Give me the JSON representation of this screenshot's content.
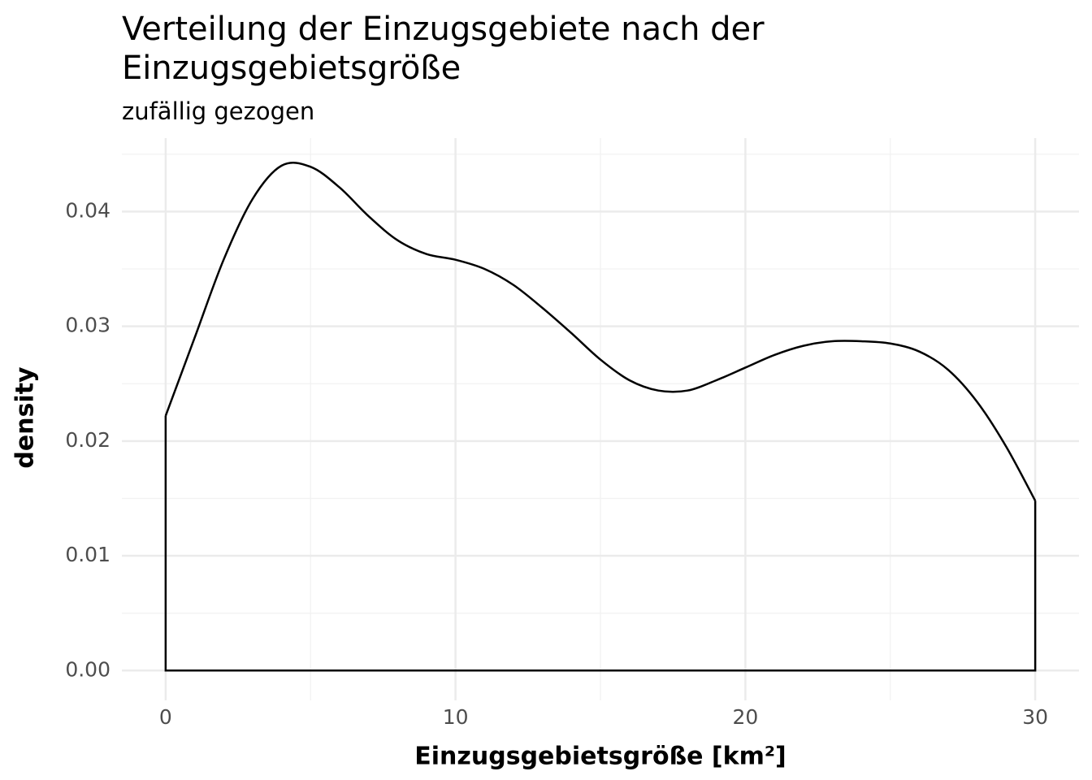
{
  "chart_data": {
    "type": "density",
    "title": [
      "Verteilung der Einzugsgebiete nach der",
      "Einzugsgebietsgröße"
    ],
    "subtitle": "zufällig gezogen",
    "x_label": "Einzugsgebietsgröße [km²]",
    "y_label": "density",
    "x": [
      0,
      1,
      2,
      3,
      4,
      5,
      6,
      7,
      8,
      9,
      10,
      11,
      12,
      13,
      14,
      15,
      16,
      17,
      18,
      19,
      20,
      21,
      22,
      23,
      24,
      25,
      26,
      27,
      28,
      29,
      30
    ],
    "values": [
      0.0222,
      0.029,
      0.0358,
      0.0411,
      0.044,
      0.0439,
      0.0421,
      0.0396,
      0.0375,
      0.0363,
      0.0358,
      0.035,
      0.0336,
      0.0316,
      0.0294,
      0.0271,
      0.0253,
      0.0244,
      0.0244,
      0.0253,
      0.0264,
      0.0275,
      0.0283,
      0.0287,
      0.0287,
      0.0285,
      0.0278,
      0.0262,
      0.0234,
      0.0195,
      0.0148
    ],
    "color": "#000000",
    "xlim": [
      -1.51,
      31.51
    ],
    "ylim": [
      -0.0026,
      0.0464
    ],
    "xticks": [
      0,
      10,
      20,
      30
    ],
    "yticks": [
      {
        "value": 0,
        "label": "0.00"
      },
      0.01,
      0.02,
      0.03,
      0.04
    ],
    "x_minor_grid": [
      5,
      15,
      25
    ],
    "y_minor_grid": [
      0.005,
      0.015,
      0.025,
      0.035,
      0.045
    ],
    "grid": true
  }
}
